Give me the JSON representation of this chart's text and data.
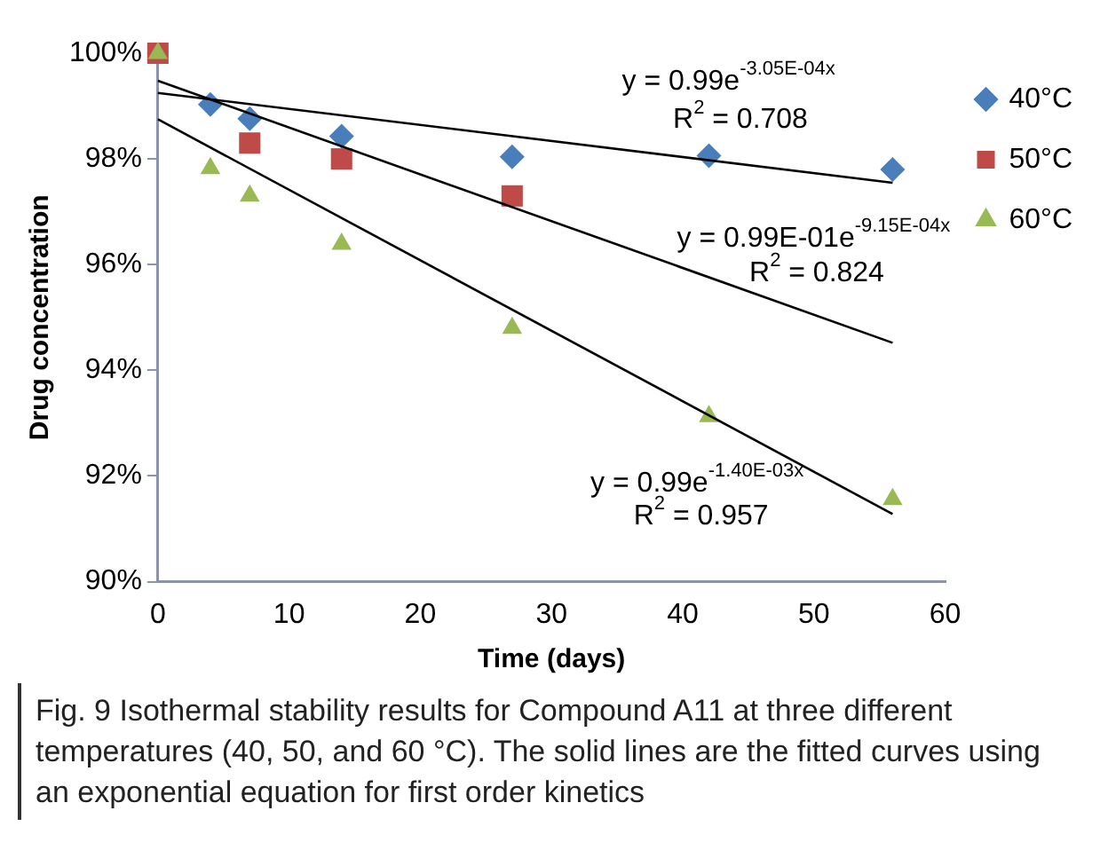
{
  "chart_data": {
    "type": "scatter",
    "xlabel": "Time (days)",
    "ylabel": "Drug concentration",
    "xlim": [
      0,
      60
    ],
    "xticks": [
      0,
      10,
      20,
      30,
      40,
      50,
      60
    ],
    "ylim": [
      90,
      100
    ],
    "yticks": [
      {
        "value": 90,
        "label": "90%"
      },
      {
        "value": 92,
        "label": "92%"
      },
      {
        "value": 94,
        "label": "94%"
      },
      {
        "value": 96,
        "label": "96%"
      },
      {
        "value": 98,
        "label": "98%"
      },
      {
        "value": 100,
        "label": "100%"
      }
    ],
    "grid": false,
    "legend": "right",
    "series": [
      {
        "name": "40°C",
        "color": "#4a7ebb",
        "marker": "diamond",
        "x": [
          4,
          7,
          14,
          27,
          42,
          56
        ],
        "values": [
          99.03,
          98.76,
          98.43,
          98.04,
          98.06,
          97.8
        ]
      },
      {
        "name": "50°C",
        "color": "#be4b48",
        "marker": "square",
        "x": [
          0,
          7,
          14,
          27
        ],
        "values": [
          100,
          98.3,
          98.0,
          97.3
        ]
      },
      {
        "name": "60°C",
        "color": "#98b954",
        "marker": "triangle",
        "x": [
          0,
          4,
          7,
          14,
          27,
          42,
          56
        ],
        "values": [
          100,
          97.82,
          97.3,
          96.39,
          94.8,
          93.13,
          91.56
        ]
      },
      {
        "type": "line",
        "color": "#000000",
        "marker": "none",
        "x": [
          0,
          56
        ],
        "values": [
          99.25,
          97.55
        ]
      },
      {
        "type": "line",
        "color": "#000000",
        "marker": "none",
        "x": [
          0,
          56
        ],
        "values": [
          99.48,
          94.52
        ]
      },
      {
        "type": "line",
        "color": "#000000",
        "marker": "none",
        "x": [
          0,
          56
        ],
        "values": [
          98.75,
          91.28
        ]
      }
    ],
    "annotations": [
      "y = 0.99e$^{-3.05E-04x}$",
      "R$^{2}$ = 0.708",
      "y = 0.99E-01e$^{-9.15E-04x}$",
      "R$^{2}$ = 0.824",
      "y = 0.99e$^{-1.40E-03x}$",
      "R$^{2}$ = 0.957",
      "Fig. 9 Isothermal stability results for Compound A11 at three different temperatures (40, 50, and 60 °C). The solid lines are the fitted curves using an exponential equation for first order kinetics"
    ]
  }
}
